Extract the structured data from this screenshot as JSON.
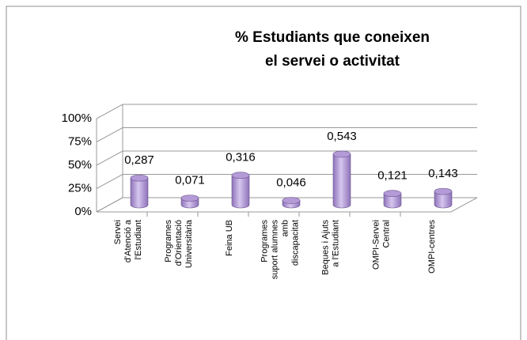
{
  "chart_data": {
    "type": "bar",
    "title": "% Estudiants que coneixen el servei o activitat",
    "categories": [
      "Servei d'Atenció a l'Estudiant",
      "Programes d'Orientació Universitària",
      "Feina UB",
      "Programes suport alumnes amb discapacitat",
      "Beques i Ajuts a l'Estudiant",
      "OMPI-Servei Central",
      "OMPI-centres"
    ],
    "values": [
      28.7,
      7.1,
      31.6,
      4.6,
      54.3,
      12.1,
      14.3
    ],
    "value_labels": [
      "0,287",
      "0,071",
      "0,316",
      "0,046",
      "0,543",
      "0,121",
      "0,143"
    ],
    "color": "#b49ad6",
    "ylim": [
      0,
      100
    ],
    "yticks": [
      {
        "value": 0,
        "label": "0%"
      },
      {
        "value": 25,
        "label": "25%"
      },
      {
        "value": 50,
        "label": "50%"
      },
      {
        "value": 75,
        "label": "75%"
      },
      {
        "value": 100,
        "label": "100%"
      }
    ],
    "grid": true
  }
}
